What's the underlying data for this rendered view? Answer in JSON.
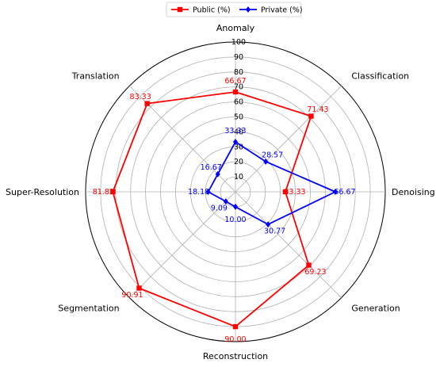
{
  "chart_data": {
    "type": "radar",
    "axes": [
      "Anomaly",
      "Classification",
      "Denoising",
      "Generation",
      "Reconstruction",
      "Segmentation",
      "Super-Resolution",
      "Translation"
    ],
    "rlim": [
      0,
      100
    ],
    "rticks": [
      10,
      20,
      30,
      40,
      50,
      60,
      70,
      80,
      90,
      100
    ],
    "grid": true,
    "legend_position": "top-center",
    "series": [
      {
        "name": "Public (%)",
        "color": "#ff0000",
        "marker": "square",
        "values": [
          66.67,
          71.43,
          33.33,
          69.23,
          90.0,
          90.91,
          81.82,
          83.33
        ],
        "labels": [
          "66.67",
          "71.43",
          "33.33",
          "69.23",
          "90.00",
          "90.91",
          "81.82",
          "83.33"
        ]
      },
      {
        "name": "Private (%)",
        "color": "#0000ff",
        "marker": "diamond",
        "values": [
          33.33,
          28.57,
          66.67,
          30.77,
          10.0,
          9.09,
          18.18,
          16.67
        ],
        "labels": [
          "33.33",
          "28.57",
          "66.67",
          "30.77",
          "10.00",
          "9.09",
          "18.18",
          "16.67"
        ]
      }
    ]
  }
}
